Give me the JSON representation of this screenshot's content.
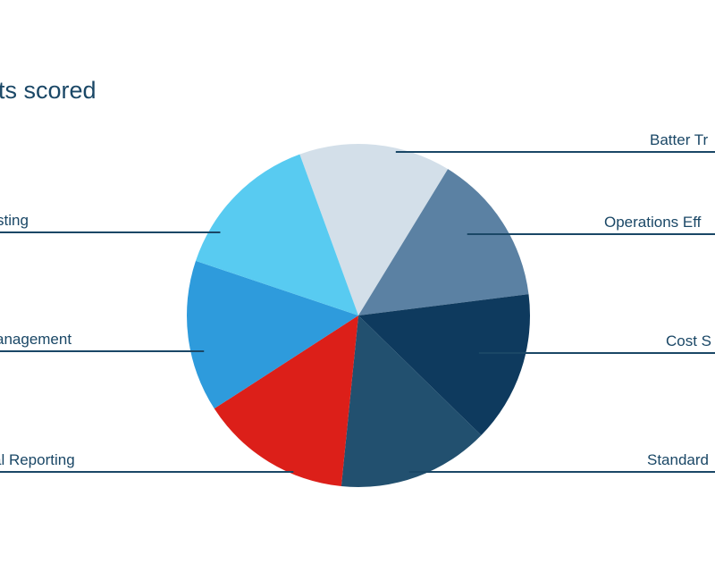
{
  "chart_data": {
    "type": "pie",
    "title": "ts scored",
    "slices": [
      {
        "label": "Batter Tr",
        "value": 1,
        "color": "#d3dfe9"
      },
      {
        "label": "Operations Eff",
        "value": 1,
        "color": "#5b81a3"
      },
      {
        "label": "Cost S",
        "value": 1,
        "color": "#0e3a5e"
      },
      {
        "label": "Standard",
        "value": 1,
        "color": "#22506f"
      },
      {
        "label": "al Reporting",
        "value": 1,
        "color": "#dc1f19"
      },
      {
        "label": "anagement",
        "value": 1,
        "color": "#2e9bdc"
      },
      {
        "label": "sting",
        "value": 1,
        "color": "#58cbf1"
      }
    ],
    "legend": "callouts",
    "text_color": "#1a4766"
  }
}
